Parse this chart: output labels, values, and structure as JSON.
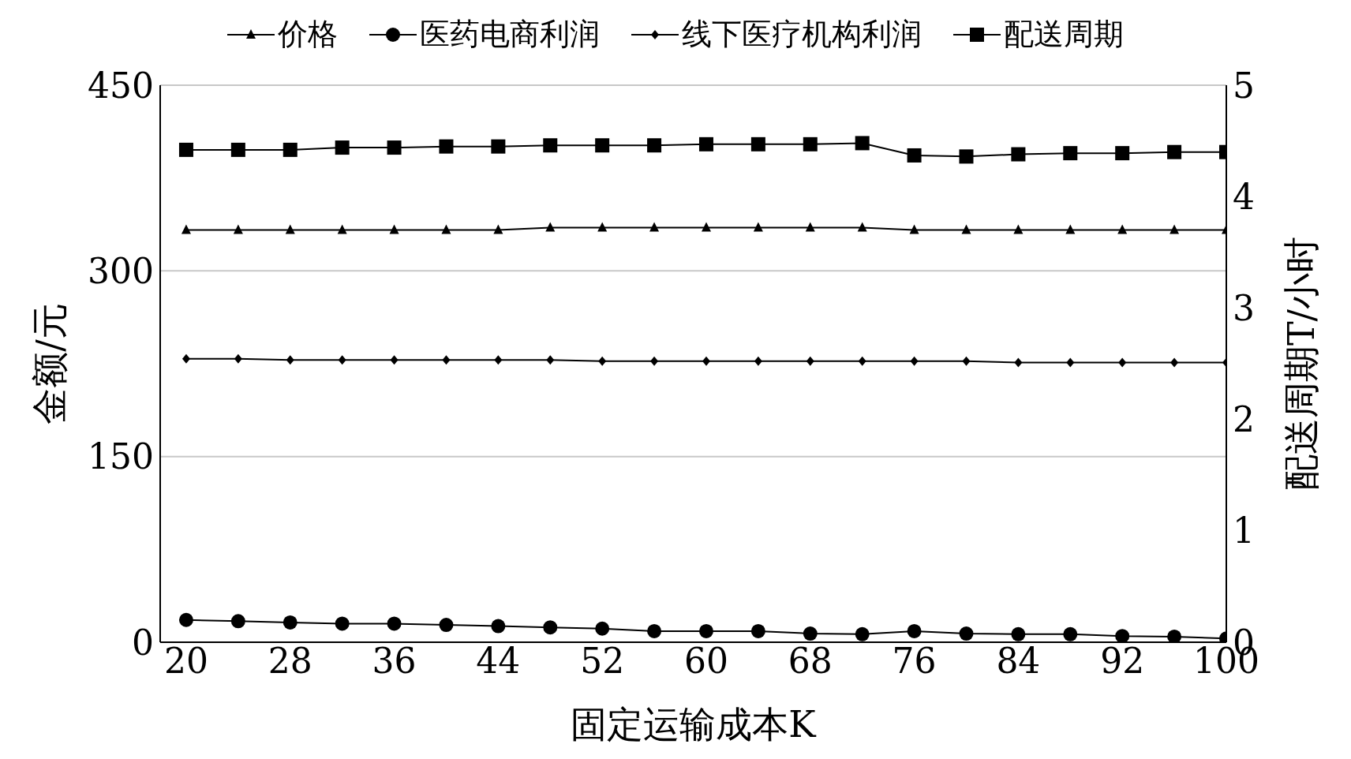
{
  "chart_data": {
    "type": "line",
    "xlabel": "固定运输成本K",
    "ylabel": "金额/元",
    "y2label": "配送周期T/小时",
    "x": [
      20,
      24,
      28,
      32,
      36,
      40,
      44,
      48,
      52,
      56,
      60,
      64,
      68,
      72,
      76,
      80,
      84,
      88,
      92,
      96,
      100
    ],
    "xlim": [
      18,
      100
    ],
    "xticks": [
      20,
      28,
      36,
      44,
      52,
      60,
      68,
      76,
      84,
      92,
      100
    ],
    "ylim": [
      0,
      450
    ],
    "yticks": [
      0,
      150,
      300,
      450
    ],
    "y2lim": [
      0,
      5
    ],
    "y2ticks": [
      0,
      1,
      2,
      3,
      4,
      5
    ],
    "grid": "y",
    "legend": "top",
    "line_style": "solid",
    "series": [
      {
        "name": "价格",
        "color": "#000000",
        "marker": "triangle",
        "values": [
          333,
          333,
          333,
          333,
          333,
          333,
          333,
          335,
          335,
          335,
          335,
          335,
          335,
          335,
          333,
          333,
          333,
          333,
          333,
          333,
          333
        ]
      },
      {
        "name": "医药电商利润",
        "color": "#000000",
        "marker": "circle",
        "values": [
          18,
          17,
          16,
          15,
          15,
          14,
          13,
          12,
          11,
          9,
          9,
          9,
          7,
          6.5,
          9,
          7,
          6.5,
          6.5,
          5,
          4.5,
          3
        ]
      },
      {
        "name": "线下医疗机构利润",
        "color": "#000000",
        "marker": "diamond",
        "values": [
          229,
          229,
          228,
          228,
          228,
          228,
          228,
          228,
          227,
          227,
          227,
          227,
          227,
          227,
          227,
          227,
          226,
          226,
          226,
          226,
          226
        ]
      },
      {
        "name": "配送周期",
        "color": "#000000",
        "marker": "square",
        "axis": "y2",
        "values": [
          4.42,
          4.42,
          4.42,
          4.44,
          4.44,
          4.45,
          4.45,
          4.46,
          4.46,
          4.46,
          4.47,
          4.47,
          4.47,
          4.48,
          4.37,
          4.36,
          4.38,
          4.39,
          4.39,
          4.4,
          4.4
        ]
      }
    ]
  }
}
